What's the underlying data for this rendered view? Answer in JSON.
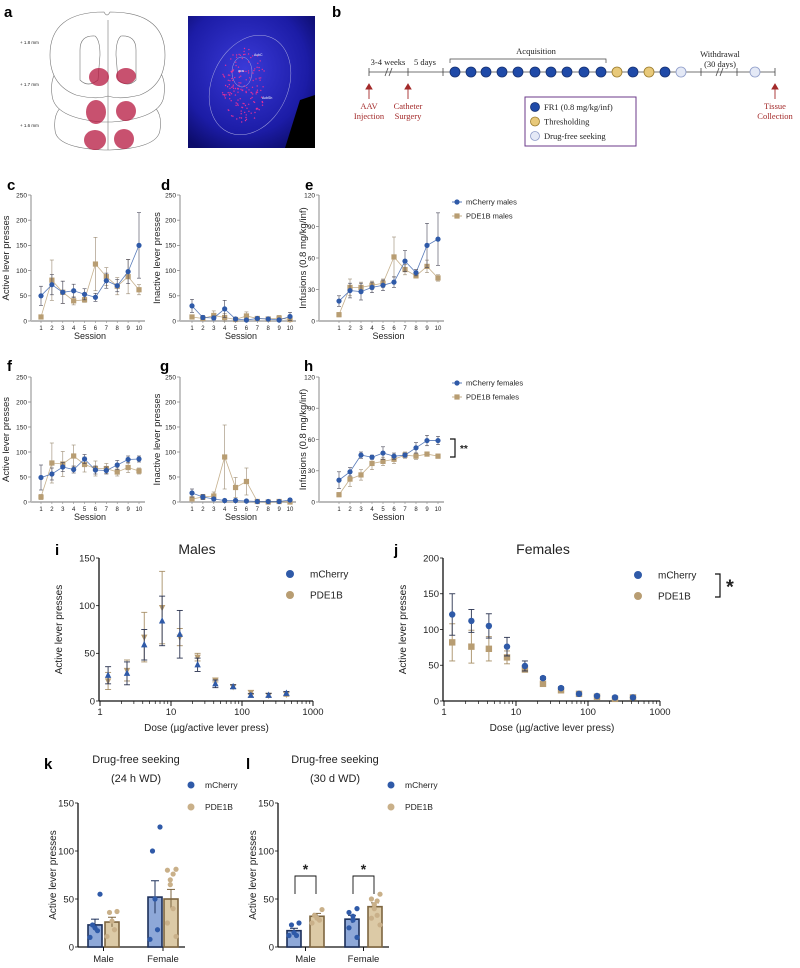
{
  "figure": {
    "panel_a": {
      "label": "a",
      "levels": [
        "+ 1.8 mm",
        "+ 1.7 mm",
        "+ 1.6 mm"
      ],
      "micro_labels": [
        "AcbC",
        "aca",
        "AcbSh"
      ]
    },
    "panel_b": {
      "label": "b",
      "interval_1": "3-4 weeks",
      "interval_2": "5 days",
      "acquisition": "Acquisition",
      "withdrawal_1": "Withdrawal",
      "withdrawal_2": "(30 days)",
      "aav_1": "AAV",
      "aav_2": "Injection",
      "cath_1": "Catheter",
      "cath_2": "Surgery",
      "tissue_1": "Tissue",
      "tissue_2": "Collection",
      "session_sequence": [
        "FR1",
        "FR1",
        "FR1",
        "FR1",
        "FR1",
        "FR1",
        "FR1",
        "FR1",
        "FR1",
        "FR1",
        "Thresholding",
        "FR1",
        "Thresholding",
        "FR1",
        "Drug-free seeking",
        "Drug-free seeking"
      ],
      "legend": [
        {
          "label": "FR1 (0.8 mg/kg/inf)",
          "color": "#1f4aa8"
        },
        {
          "label": "Thresholding",
          "color": "#e8c97a"
        },
        {
          "label": "Drug-free seeking",
          "color": "#e4e9f6"
        }
      ],
      "legend_border": "#6b3a8a"
    }
  },
  "chart_data": [
    {
      "id": "c",
      "panel_label": "c",
      "type": "line",
      "xlabel": "Session",
      "ylabel": "Active lever presses",
      "x": [
        1,
        2,
        3,
        4,
        5,
        6,
        7,
        8,
        9,
        10
      ],
      "ylim": [
        0,
        250
      ],
      "yticks": [
        0,
        50,
        100,
        150,
        200,
        250
      ],
      "series": [
        {
          "color": "#2f5aa8",
          "marker": "circle",
          "values": [
            50,
            72,
            57,
            60,
            53,
            47,
            80,
            70,
            98,
            150
          ],
          "err": [
            19,
            20,
            22,
            13,
            11,
            8,
            15,
            12,
            24,
            65
          ]
        },
        {
          "color": "#b89d72",
          "marker": "square",
          "values": [
            8,
            81,
            57,
            40,
            42,
            113,
            88,
            69,
            88,
            62
          ],
          "err": [
            3,
            40,
            22,
            8,
            5,
            53,
            18,
            17,
            34,
            10
          ]
        }
      ]
    },
    {
      "id": "d",
      "panel_label": "d",
      "type": "line",
      "xlabel": "Session",
      "ylabel": "Inactive lever presses",
      "x": [
        1,
        2,
        3,
        4,
        5,
        6,
        7,
        8,
        9,
        10
      ],
      "ylim": [
        0,
        250
      ],
      "yticks": [
        0,
        50,
        100,
        150,
        200,
        250
      ],
      "series": [
        {
          "color": "#2f5aa8",
          "marker": "circle",
          "values": [
            30,
            7,
            6,
            24,
            4,
            2,
            5,
            4,
            2,
            9
          ],
          "err": [
            13,
            4,
            4,
            17,
            3,
            2,
            2,
            2,
            3,
            8
          ]
        },
        {
          "color": "#b89d72",
          "marker": "square",
          "values": [
            8,
            5,
            11,
            7,
            3,
            10,
            5,
            4,
            6,
            3
          ],
          "err": [
            4,
            3,
            9,
            8,
            3,
            8,
            2,
            2,
            5,
            3
          ]
        }
      ]
    },
    {
      "id": "e",
      "panel_label": "e",
      "type": "line",
      "xlabel": "Session",
      "ylabel": "Infusions (0.8 mg/kg/inf)",
      "x": [
        1,
        2,
        3,
        4,
        5,
        6,
        7,
        8,
        9,
        10
      ],
      "ylim": [
        0,
        120
      ],
      "yticks": [
        0,
        30,
        60,
        90,
        120
      ],
      "series": [
        {
          "name": "mCherry males",
          "color": "#2f5aa8",
          "marker": "circle",
          "values": [
            19,
            29,
            28,
            32,
            34,
            37,
            57,
            46,
            72,
            78
          ],
          "err": [
            5,
            7,
            8,
            5,
            5,
            5,
            10,
            3,
            21,
            25
          ]
        },
        {
          "name": "PDE1B males",
          "color": "#b89d72",
          "marker": "square",
          "values": [
            6,
            32,
            32,
            34,
            36,
            61,
            49,
            43,
            52,
            41
          ],
          "err": [
            2,
            8,
            5,
            4,
            4,
            19,
            5,
            2,
            6,
            3
          ]
        }
      ],
      "legend": "right"
    },
    {
      "id": "f",
      "panel_label": "f",
      "type": "line",
      "xlabel": "Session",
      "ylabel": "Active lever presses",
      "x": [
        1,
        2,
        3,
        4,
        5,
        6,
        7,
        8,
        9,
        10
      ],
      "ylim": [
        0,
        250
      ],
      "yticks": [
        0,
        50,
        100,
        150,
        200,
        250
      ],
      "series": [
        {
          "color": "#2f5aa8",
          "marker": "circle",
          "values": [
            49,
            56,
            70,
            65,
            86,
            64,
            63,
            74,
            85,
            86
          ],
          "err": [
            25,
            12,
            9,
            7,
            9,
            8,
            7,
            9,
            7,
            6
          ]
        },
        {
          "color": "#b89d72",
          "marker": "square",
          "values": [
            10,
            78,
            76,
            92,
            75,
            67,
            67,
            60,
            69,
            62
          ],
          "err": [
            5,
            40,
            25,
            22,
            15,
            15,
            10,
            8,
            10,
            6
          ]
        }
      ]
    },
    {
      "id": "g",
      "panel_label": "g",
      "type": "line",
      "xlabel": "Session",
      "ylabel": "Inactive lever presses",
      "x": [
        1,
        2,
        3,
        4,
        5,
        6,
        7,
        8,
        9,
        10
      ],
      "ylim": [
        0,
        250
      ],
      "yticks": [
        0,
        50,
        100,
        150,
        200,
        250
      ],
      "series": [
        {
          "color": "#2f5aa8",
          "marker": "circle",
          "values": [
            18,
            10,
            6,
            3,
            3,
            2,
            1,
            1,
            1,
            4
          ],
          "err": [
            8,
            5,
            3,
            2,
            2,
            2,
            1,
            1,
            1,
            3
          ]
        },
        {
          "color": "#b89d72",
          "marker": "square",
          "values": [
            6,
            10,
            12,
            90,
            29,
            41,
            1,
            0,
            1,
            0
          ],
          "err": [
            3,
            5,
            8,
            64,
            20,
            27,
            1,
            1,
            1,
            1
          ]
        }
      ]
    },
    {
      "id": "h",
      "panel_label": "h",
      "type": "line",
      "xlabel": "Session",
      "ylabel": "Infusions (0.8 mg/kg/inf)",
      "x": [
        1,
        2,
        3,
        4,
        5,
        6,
        7,
        8,
        9,
        10
      ],
      "ylim": [
        0,
        120
      ],
      "yticks": [
        0,
        30,
        60,
        90,
        120
      ],
      "series": [
        {
          "name": "mCherry females",
          "color": "#2f5aa8",
          "marker": "circle",
          "values": [
            21,
            29,
            45,
            43,
            47,
            44,
            45,
            52,
            59,
            59
          ],
          "err": [
            8,
            4,
            3,
            2,
            6,
            3,
            2,
            5,
            5,
            4
          ]
        },
        {
          "name": "PDE1B females",
          "color": "#b89d72",
          "marker": "square",
          "values": [
            7,
            22,
            26,
            37,
            39,
            41,
            45,
            44,
            46,
            44
          ],
          "err": [
            2,
            7,
            5,
            6,
            4,
            4,
            3,
            3,
            2,
            2
          ]
        }
      ],
      "legend": "right",
      "annotation": "**"
    },
    {
      "id": "i",
      "panel_label": "i",
      "type": "scatter",
      "title": "Males",
      "xlabel": "Dose (µg/active lever press)",
      "ylabel": "Active lever presses",
      "xscale": "log",
      "xlim": [
        1,
        1000
      ],
      "xticks": [
        "1",
        "10",
        "100",
        "1000"
      ],
      "ylim": [
        0,
        150
      ],
      "yticks": [
        0,
        50,
        100,
        150
      ],
      "x": [
        1.3,
        2.4,
        4.2,
        7.5,
        13.3,
        23.7,
        42.2,
        75,
        133.3,
        237.1,
        421.6
      ],
      "series": [
        {
          "name": "mCherry",
          "color": "#2f5aa8",
          "marker": "triangle-up",
          "values": [
            27,
            29,
            59,
            84,
            70,
            38,
            18,
            15,
            6,
            6,
            8
          ],
          "err": [
            9,
            12,
            16,
            26,
            25,
            7,
            4,
            2,
            2,
            2,
            2
          ]
        },
        {
          "name": "PDE1B",
          "color": "#b89d72",
          "marker": "triangle-down",
          "values": [
            21,
            32,
            67,
            98,
            67,
            46,
            22,
            15,
            9,
            6,
            7
          ],
          "err": [
            9,
            11,
            26,
            38,
            9,
            4,
            2,
            2,
            2,
            2,
            2
          ]
        }
      ],
      "legend": "top-right"
    },
    {
      "id": "j",
      "panel_label": "j",
      "type": "scatter",
      "title": "Females",
      "xlabel": "Dose (µg/active lever press)",
      "ylabel": "Active lever presses",
      "xscale": "log",
      "xlim": [
        1,
        1000
      ],
      "xticks": [
        "1",
        "10",
        "100",
        "1000"
      ],
      "ylim": [
        0,
        200
      ],
      "yticks": [
        0,
        50,
        100,
        150,
        200
      ],
      "x": [
        1.3,
        2.4,
        4.2,
        7.5,
        13.3,
        23.7,
        42.2,
        75,
        133.3,
        237.1,
        421.6
      ],
      "series": [
        {
          "name": "mCherry",
          "color": "#2f5aa8",
          "marker": "circle",
          "values": [
            121,
            112,
            105,
            76,
            49,
            32,
            18,
            10,
            7,
            5,
            5
          ],
          "err": [
            29,
            16,
            17,
            13,
            7,
            2,
            2,
            1,
            1,
            1,
            1
          ]
        },
        {
          "name": "PDE1B",
          "color": "#b89d72",
          "marker": "square",
          "values": [
            82,
            76,
            73,
            61,
            44,
            24,
            15,
            10,
            6,
            3,
            5
          ],
          "err": [
            26,
            23,
            17,
            9,
            3,
            2,
            2,
            1,
            1,
            1,
            1
          ]
        }
      ],
      "legend": "top-right",
      "annotation": "*"
    },
    {
      "id": "k",
      "panel_label": "k",
      "type": "bar",
      "title": [
        "Drug-free seeking",
        "(24 h WD)"
      ],
      "ylabel": "Active lever presses",
      "categories": [
        "Male",
        "Female"
      ],
      "ylim": [
        0,
        150
      ],
      "yticks": [
        0,
        50,
        100,
        150
      ],
      "series": [
        {
          "name": "mCherry",
          "color": "#2f5aa8",
          "fill": "#8ea8d8",
          "stroke": "#1c2f5a",
          "means": [
            23,
            52
          ],
          "sem": [
            6,
            17
          ],
          "points": [
            [
              55,
              23,
              20,
              17,
              10
            ],
            [
              125,
              100,
              50,
              18,
              8
            ]
          ]
        },
        {
          "name": "PDE1B",
          "color": "#c9b089",
          "fill": "#dccaa6",
          "stroke": "#7d6540",
          "means": [
            26,
            50
          ],
          "sem": [
            5,
            10
          ],
          "points": [
            [
              37,
              36,
              27,
              18,
              11
            ],
            [
              81,
              80,
              76,
              70,
              65,
              40,
              25,
              11
            ]
          ]
        }
      ],
      "legend": "top-right"
    },
    {
      "id": "l",
      "panel_label": "l",
      "type": "bar",
      "title": [
        "Drug-free seeking",
        "(30 d WD)"
      ],
      "ylabel": "Active lever presses",
      "categories": [
        "Male",
        "Female"
      ],
      "ylim": [
        0,
        150
      ],
      "yticks": [
        0,
        50,
        100,
        150
      ],
      "series": [
        {
          "name": "mCherry",
          "color": "#2f5aa8",
          "fill": "#8ea8d8",
          "stroke": "#1c2f5a",
          "means": [
            17,
            29
          ],
          "sem": [
            2.5,
            4
          ],
          "points": [
            [
              25,
              23,
              15,
              12,
              12
            ],
            [
              40,
              36,
              32,
              28,
              20,
              10
            ]
          ]
        },
        {
          "name": "PDE1B",
          "color": "#c9b089",
          "fill": "#dccaa6",
          "stroke": "#7d6540",
          "means": [
            32,
            42
          ],
          "sem": [
            3,
            4
          ],
          "points": [
            [
              39,
              33,
              30,
              28,
              25
            ],
            [
              55,
              50,
              48,
              44,
              40,
              33,
              30,
              23
            ]
          ]
        }
      ],
      "legend": "top-right",
      "annotation": [
        "*",
        "*"
      ]
    }
  ]
}
